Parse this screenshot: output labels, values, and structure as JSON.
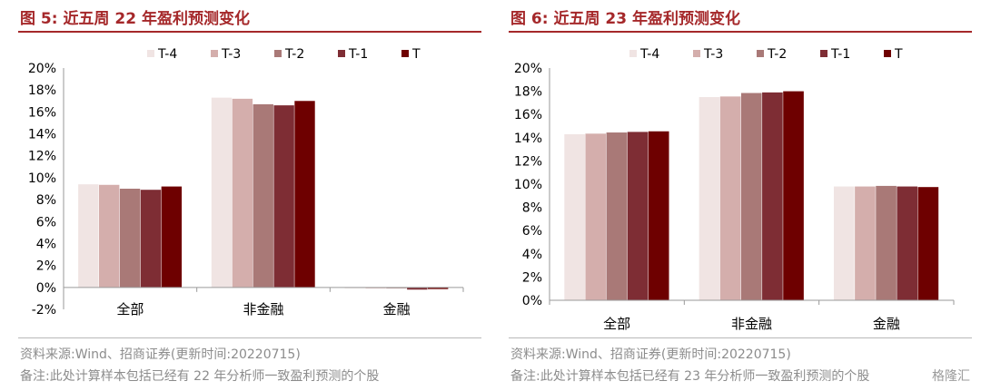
{
  "figures": [
    {
      "title_prefix": "图 5:",
      "title_rest": "近五周 22 年盈利预测变化",
      "source": "资料来源:Wind、招商证券(更新时间:20220715)",
      "remark": "备注:此处计算样本包括已经有 22 年分析师一致盈利预测的个股"
    },
    {
      "title_prefix": "图 6:",
      "title_rest": "近五周 23 年盈利预测变化",
      "source": "资料来源:Wind、招商证券(更新时间:20220715)",
      "remark": "备注:此处计算样本包括已经有 23 年分析师一致盈利预测的个股"
    }
  ],
  "watermark": "格隆汇",
  "chart_data": [
    {
      "type": "bar",
      "categories": [
        "全部",
        "非金融",
        "金融"
      ],
      "series": [
        {
          "name": "T-4",
          "color": "#f0e4e3",
          "values": [
            9.4,
            17.3,
            -0.05
          ]
        },
        {
          "name": "T-3",
          "color": "#d4aeac",
          "values": [
            9.35,
            17.2,
            -0.05
          ]
        },
        {
          "name": "T-2",
          "color": "#a97977",
          "values": [
            9.0,
            16.7,
            -0.08
          ]
        },
        {
          "name": "T-1",
          "color": "#7e2d34",
          "values": [
            8.9,
            16.6,
            -0.2
          ]
        },
        {
          "name": "T",
          "color": "#6e0000",
          "values": [
            9.2,
            17.0,
            -0.15
          ]
        }
      ],
      "ylim": [
        -2,
        20
      ],
      "ytick_labels": [
        "-2%",
        "0%",
        "2%",
        "4%",
        "6%",
        "8%",
        "10%",
        "12%",
        "14%",
        "16%",
        "18%",
        "20%"
      ],
      "legend": "top",
      "grid": false
    },
    {
      "type": "bar",
      "categories": [
        "全部",
        "非金融",
        "金融"
      ],
      "series": [
        {
          "name": "T-4",
          "color": "#f0e4e3",
          "values": [
            14.3,
            17.5,
            9.8
          ]
        },
        {
          "name": "T-3",
          "color": "#d4aeac",
          "values": [
            14.35,
            17.55,
            9.8
          ]
        },
        {
          "name": "T-2",
          "color": "#a97977",
          "values": [
            14.45,
            17.85,
            9.85
          ]
        },
        {
          "name": "T-1",
          "color": "#7e2d34",
          "values": [
            14.5,
            17.9,
            9.8
          ]
        },
        {
          "name": "T",
          "color": "#6e0000",
          "values": [
            14.55,
            18.0,
            9.75
          ]
        }
      ],
      "ylim": [
        0,
        20
      ],
      "ytick_labels": [
        "0%",
        "2%",
        "4%",
        "6%",
        "8%",
        "10%",
        "12%",
        "14%",
        "16%",
        "18%",
        "20%"
      ],
      "legend": "top",
      "grid": false
    }
  ]
}
